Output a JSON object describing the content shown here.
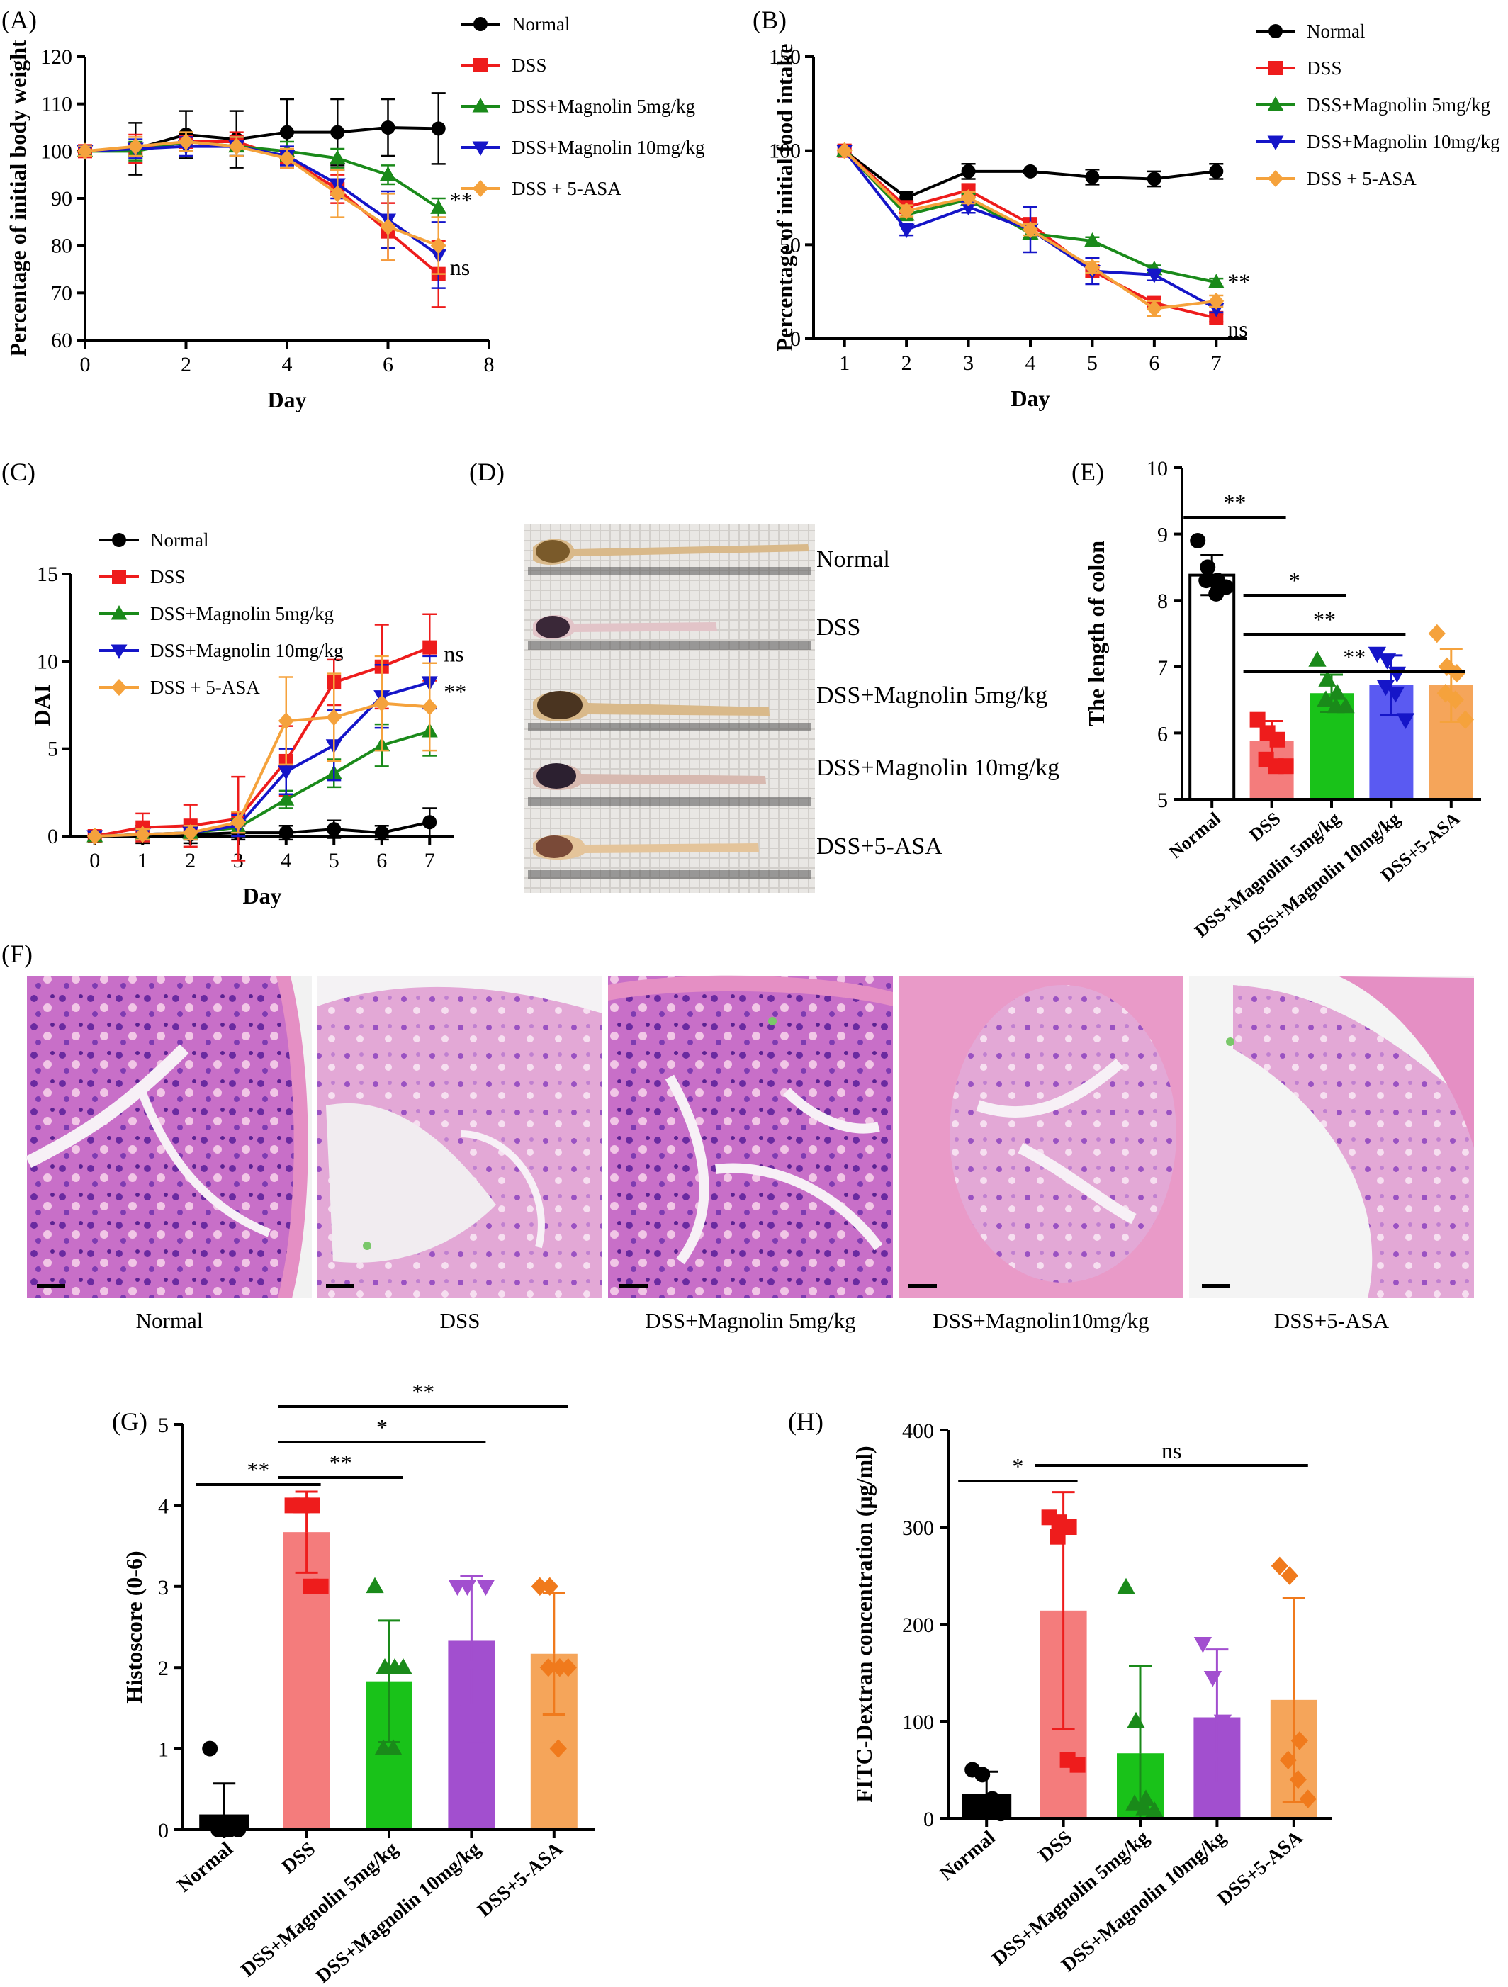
{
  "colors": {
    "Normal": "#000000",
    "DSS": "#ee1c1c",
    "Magnolin5": "#1a8a1a",
    "Magnolin10": "#1515c8",
    "ASA": "#f5a23c",
    "DSSbar": "#f47c7c",
    "M5bar": "#19c219",
    "M10bar_E": "#5a5af2",
    "M10bar_GH": "#a24fcf",
    "ASAbar": "#f5a55a",
    "ASAmarker_GH": "#f07a1c"
  },
  "panels": {
    "A": {
      "letter": "(A)"
    },
    "B": {
      "letter": "(B)"
    },
    "C": {
      "letter": "(C)"
    },
    "D": {
      "letter": "(D)",
      "labels": [
        "Normal",
        "DSS",
        "DSS+Magnolin 5mg/kg",
        "DSS+Magnolin 10mg/kg",
        "DSS+5-ASA"
      ]
    },
    "E": {
      "letter": "(E)"
    },
    "F": {
      "letter": "(F)",
      "labels": [
        "Normal",
        "DSS",
        "DSS+Magnolin 5mg/kg",
        "DSS+Magnolin10mg/kg",
        "DSS+5-ASA"
      ]
    },
    "G": {
      "letter": "(G)"
    },
    "H": {
      "letter": "(H)"
    }
  },
  "chart_data": [
    {
      "id": "A",
      "type": "line",
      "xlabel": "Day",
      "ylabel": "Percentage of initial body weight",
      "xlim": [
        0,
        8
      ],
      "ylim": [
        60,
        120
      ],
      "xticks": [
        0,
        2,
        4,
        6,
        8
      ],
      "yticks": [
        60,
        70,
        80,
        90,
        100,
        110,
        120
      ],
      "x": [
        0,
        1,
        2,
        3,
        4,
        5,
        6,
        7
      ],
      "series": [
        {
          "name": "Normal",
          "marker": "circle",
          "values": [
            100,
            100.5,
            103.5,
            102.5,
            104,
            104,
            105,
            104.8
          ],
          "err": [
            1,
            5.5,
            5,
            6,
            7,
            7,
            6,
            7.5
          ]
        },
        {
          "name": "DSS",
          "marker": "square",
          "values": [
            100,
            100.5,
            102,
            102,
            98.5,
            92,
            83,
            74
          ],
          "err": [
            1,
            3,
            2,
            2,
            2,
            3,
            6,
            7
          ]
        },
        {
          "name": "DSS+Magnolin 5mg/kg",
          "marker": "triangle-up",
          "values": [
            100,
            100,
            102,
            101,
            100,
            98.5,
            95,
            88
          ],
          "err": [
            1,
            2,
            2,
            2,
            2,
            2,
            2,
            2
          ]
        },
        {
          "name": "DSS+Magnolin 10mg/kg",
          "marker": "triangle-down",
          "values": [
            100,
            100.5,
            101,
            101,
            99,
            93,
            85.5,
            78
          ],
          "err": [
            1,
            2,
            2,
            2,
            2,
            3,
            6,
            7
          ]
        },
        {
          "name": "DSS + 5-ASA",
          "marker": "diamond",
          "values": [
            100,
            101,
            102,
            101,
            98.5,
            91,
            84,
            80
          ],
          "err": [
            1,
            2,
            2,
            2,
            2,
            5,
            7,
            6
          ]
        }
      ],
      "annotations": [
        {
          "text": "**",
          "series": "DSS+Magnolin 5mg/kg"
        },
        {
          "text": "ns",
          "series": "DSS+Magnolin 10mg/kg"
        }
      ]
    },
    {
      "id": "B",
      "type": "line",
      "xlabel": "Day",
      "ylabel": "Percentage of initial food intake",
      "xlim": [
        0.5,
        7.5
      ],
      "ylim": [
        0,
        150
      ],
      "xticks": [
        1,
        2,
        3,
        4,
        5,
        6,
        7
      ],
      "yticks": [
        0,
        50,
        100,
        150
      ],
      "x": [
        1,
        2,
        3,
        4,
        5,
        6,
        7
      ],
      "series": [
        {
          "name": "Normal",
          "marker": "circle",
          "values": [
            100,
            75,
            89,
            89,
            86,
            85,
            89
          ],
          "err": [
            0,
            3,
            4,
            1,
            4,
            4,
            4
          ]
        },
        {
          "name": "DSS",
          "marker": "square",
          "values": [
            100,
            70,
            79,
            61,
            36,
            19,
            11
          ],
          "err": [
            0,
            3,
            3,
            3,
            3,
            3,
            2
          ]
        },
        {
          "name": "DSS+Magnolin 5mg/kg",
          "marker": "triangle-up",
          "values": [
            100,
            66,
            74,
            56,
            52,
            37,
            30
          ],
          "err": [
            0,
            3,
            3,
            3,
            2,
            2,
            2
          ]
        },
        {
          "name": "DSS+Magnolin 10mg/kg",
          "marker": "triangle-down",
          "values": [
            100,
            58,
            70,
            58,
            36,
            34,
            16
          ],
          "err": [
            0,
            3,
            3,
            12,
            7,
            3,
            2
          ]
        },
        {
          "name": "DSS + 5-ASA",
          "marker": "diamond",
          "values": [
            100,
            68,
            75,
            58,
            38,
            16,
            20
          ],
          "err": [
            0,
            3,
            3,
            3,
            3,
            4,
            3
          ]
        }
      ],
      "annotations": [
        {
          "text": "**",
          "series": "DSS+Magnolin 5mg/kg"
        },
        {
          "text": "ns",
          "series": "DSS"
        }
      ]
    },
    {
      "id": "C",
      "type": "line",
      "xlabel": "Day",
      "ylabel": "DAI",
      "xlim": [
        -0.5,
        7.5
      ],
      "ylim": [
        0,
        15
      ],
      "xticks": [
        0,
        1,
        2,
        3,
        4,
        5,
        6,
        7
      ],
      "yticks": [
        0,
        5,
        10,
        15
      ],
      "x": [
        0,
        1,
        2,
        3,
        4,
        5,
        6,
        7
      ],
      "series": [
        {
          "name": "Normal",
          "marker": "circle",
          "values": [
            0,
            0.1,
            0.1,
            0.2,
            0.2,
            0.4,
            0.2,
            0.8
          ],
          "err": [
            0,
            0.5,
            0.5,
            0.4,
            0.4,
            0.5,
            0.4,
            0.8
          ]
        },
        {
          "name": "DSS",
          "marker": "square",
          "values": [
            0,
            0.5,
            0.6,
            1.0,
            4.3,
            8.8,
            9.7,
            10.8
          ],
          "err": [
            0,
            0.8,
            1.2,
            2.4,
            2,
            1.3,
            2.4,
            1.9
          ]
        },
        {
          "name": "DSS+Magnolin 5mg/kg",
          "marker": "triangle-up",
          "values": [
            0,
            0.1,
            0.2,
            0.5,
            2.1,
            3.6,
            5.2,
            6.0
          ],
          "err": [
            0,
            0.3,
            0.4,
            0.5,
            0.5,
            0.8,
            1.2,
            1.4
          ]
        },
        {
          "name": "DSS+Magnolin 10mg/kg",
          "marker": "triangle-down",
          "values": [
            0,
            0.1,
            0.2,
            0.6,
            3.7,
            5.2,
            8.0,
            8.8
          ],
          "err": [
            0,
            0.3,
            0.4,
            0.6,
            1.3,
            2.0,
            1.8,
            1.5
          ]
        },
        {
          "name": "DSS + 5-ASA",
          "marker": "diamond",
          "values": [
            0,
            0.1,
            0.2,
            0.8,
            6.6,
            6.8,
            7.6,
            7.4
          ],
          "err": [
            0,
            0.3,
            0.4,
            0.6,
            2.5,
            2.5,
            2.7,
            2.5
          ]
        }
      ],
      "annotations": [
        {
          "text": "ns",
          "series": "DSS"
        },
        {
          "text": "**",
          "series": "DSS+Magnolin 10mg/kg"
        }
      ]
    },
    {
      "id": "E",
      "type": "bar",
      "ylabel": "The length of colon",
      "ylim": [
        5,
        10
      ],
      "yticks": [
        5,
        6,
        7,
        8,
        9,
        10
      ],
      "categories": [
        "Normal",
        "DSS",
        "DSS+Magnolin 5mg/kg",
        "DSS+Magnolin 10mg/kg",
        "DSS+5-ASA"
      ],
      "values": [
        8.38,
        5.88,
        6.6,
        6.72,
        6.72
      ],
      "err": [
        0.3,
        0.3,
        0.28,
        0.45,
        0.55
      ],
      "points": [
        [
          8.9,
          8.5,
          8.3,
          8.3,
          8.1,
          8.2
        ],
        [
          6.2,
          6.0,
          5.9,
          5.6,
          5.5,
          5.5
        ],
        [
          7.1,
          6.8,
          6.6,
          6.5,
          6.4,
          6.4
        ],
        [
          7.2,
          7.1,
          6.9,
          6.7,
          6.6,
          6.2
        ],
        [
          7.5,
          7.0,
          6.9,
          6.6,
          6.5,
          6.2
        ]
      ],
      "significance": [
        {
          "from": 0,
          "to": 1,
          "text": "**"
        },
        {
          "from": 1,
          "to": 2,
          "text": "*"
        },
        {
          "from": 1,
          "to": 3,
          "text": "**"
        },
        {
          "from": 1,
          "to": 4,
          "text": "**"
        }
      ]
    },
    {
      "id": "G",
      "type": "bar",
      "ylabel": "Histoscore (0-6)",
      "ylim": [
        0,
        5
      ],
      "yticks": [
        0,
        1,
        2,
        3,
        4,
        5
      ],
      "categories": [
        "Normal",
        "DSS",
        "DSS+Magnolin 5mg/kg",
        "DSS+Magnolin 10mg/kg",
        "DSS+5-ASA"
      ],
      "values": [
        0.17,
        3.67,
        1.83,
        2.33,
        2.17
      ],
      "err": [
        0.4,
        0.5,
        0.75,
        0.8,
        0.75
      ],
      "points": [
        [
          1,
          0,
          0,
          0,
          0,
          0
        ],
        [
          4,
          4,
          4,
          4,
          3,
          3
        ],
        [
          3,
          2,
          2,
          1,
          1,
          2
        ],
        [
          3,
          3,
          2,
          2,
          1,
          3
        ],
        [
          3,
          3,
          2,
          2,
          1,
          2
        ]
      ],
      "significance": [
        {
          "from": 0,
          "to": 1,
          "text": "**"
        },
        {
          "from": 1,
          "to": 2,
          "text": "**"
        },
        {
          "from": 1,
          "to": 3,
          "text": "*"
        },
        {
          "from": 1,
          "to": 4,
          "text": "**"
        }
      ]
    },
    {
      "id": "H",
      "type": "bar",
      "ylabel": "FITC-Dextran concentration (μg/ml)",
      "ylim": [
        0,
        400
      ],
      "yticks": [
        0,
        100,
        200,
        300,
        400
      ],
      "categories": [
        "Normal",
        "DSS",
        "DSS+Magnolin 5mg/kg",
        "DSS+Magnolin 10mg/kg",
        "DSS+5-ASA"
      ],
      "values": [
        24,
        214,
        67,
        104,
        122
      ],
      "err": [
        24,
        122,
        90,
        70,
        105
      ],
      "points": [
        [
          50,
          45,
          20,
          10,
          10,
          5
        ],
        [
          310,
          305,
          300,
          290,
          60,
          55
        ],
        [
          238,
          100,
          20,
          15,
          10,
          8
        ],
        [
          180,
          145,
          100,
          60,
          30,
          15
        ],
        [
          260,
          250,
          80,
          60,
          40,
          20
        ]
      ],
      "significance": [
        {
          "from": 0,
          "to": 1,
          "text": "*"
        },
        {
          "from": 1,
          "to": 4,
          "text": "ns"
        }
      ]
    }
  ]
}
